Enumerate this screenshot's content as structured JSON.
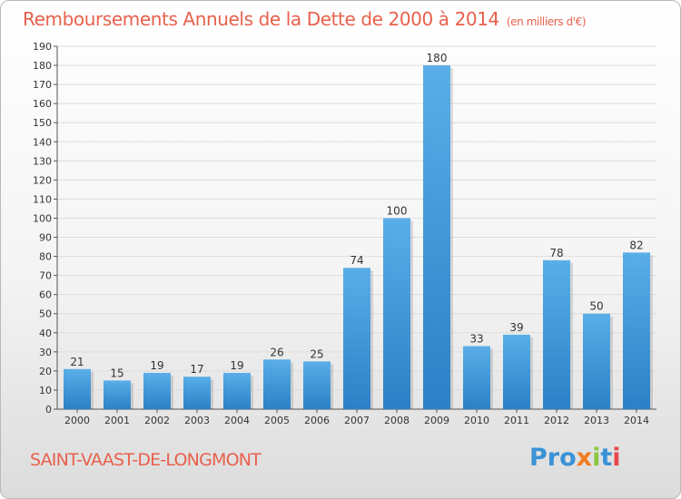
{
  "title": "Remboursements Annuels de la Dette de 2000 à 2014",
  "unit_note": "(en milliers d'€)",
  "commune": "SAINT-VAAST-DE-LONGMONT",
  "logo": {
    "letters": [
      "Pro",
      "x",
      "i",
      "t",
      "i"
    ]
  },
  "colors": {
    "title": "#e8604c",
    "bar_top": "#5aaee8",
    "bar_bottom": "#2b80c6",
    "grid": "#dddddd"
  },
  "chart_data": {
    "type": "bar",
    "categories": [
      "2000",
      "2001",
      "2002",
      "2003",
      "2004",
      "2005",
      "2006",
      "2007",
      "2008",
      "2009",
      "2010",
      "2011",
      "2012",
      "2013",
      "2014"
    ],
    "values": [
      21,
      15,
      19,
      17,
      19,
      26,
      25,
      74,
      100,
      180,
      33,
      39,
      78,
      50,
      82
    ],
    "title": "Remboursements Annuels de la Dette de 2000 à 2014",
    "xlabel": "",
    "ylabel": "",
    "ylim": [
      0,
      190
    ],
    "yticks": [
      0,
      10,
      20,
      30,
      40,
      50,
      60,
      70,
      80,
      90,
      100,
      110,
      120,
      130,
      140,
      150,
      160,
      170,
      180,
      190
    ],
    "grid": true,
    "legend": "none"
  }
}
